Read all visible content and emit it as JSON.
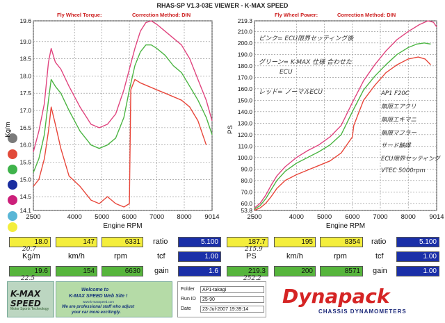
{
  "page": {
    "title": "RHAS-SP V1.3-03E VIEWER - K-MAX SPEED"
  },
  "left_panel": {
    "header_left": "Fly Wheel Torque:",
    "header_right": "Correction Method: DIN",
    "ylabel": "Kg/m",
    "xlabel": "Engine RPM",
    "dot_colors": [
      "#7a7a7a",
      "#e24a3a",
      "#3fb34b",
      "#1a2da0",
      "#cc1f7a",
      "#59b6d6",
      "#f3ee3c"
    ]
  },
  "right_panel": {
    "header_left": "Fly Wheel Power:",
    "header_right": "Correction Method: DIN",
    "ylabel": "PS",
    "xlabel": "Engine RPM",
    "notes": [
      "ピンク= ECU限界セッティング後",
      "グリーン= K-MAX 仕様 合わせた",
      "ECU",
      "レッド= ノーマルECU",
      "AP1 F20C",
      "無限エアクリ",
      "無限エキマニ",
      "無限マフラー",
      "サード触媒",
      "ECU限界セッティング",
      "VTEC 5000rpm"
    ]
  },
  "chart_data": [
    {
      "type": "line",
      "title": "Fly Wheel Torque:",
      "xlabel": "Engine RPM",
      "ylabel": "Kg/m",
      "xlim": [
        2500,
        9014
      ],
      "ylim": [
        14.1,
        19.6
      ],
      "xticks": [
        "2500",
        "4000",
        "5000",
        "6000",
        "7000",
        "8000",
        "9014"
      ],
      "xtick_values": [
        2500,
        4000,
        5000,
        6000,
        7000,
        8000,
        9014
      ],
      "yticks": [
        "19.6",
        "19.0",
        "18.5",
        "18.0",
        "17.5",
        "17.0",
        "16.5",
        "16.0",
        "15.5",
        "15.0",
        "14.5",
        "14.1"
      ],
      "ytick_values": [
        19.6,
        19.0,
        18.5,
        18.0,
        17.5,
        17.0,
        16.5,
        16.0,
        15.5,
        15.0,
        14.5,
        14.1
      ],
      "series": [
        {
          "color": "#e0447e",
          "x": [
            2500,
            2700,
            2900,
            3050,
            3150,
            3300,
            3500,
            3800,
            4200,
            4600,
            4900,
            5200,
            5500,
            5800,
            6000,
            6200,
            6400,
            6600,
            6800,
            7000,
            7300,
            7600,
            7900,
            8200,
            8500,
            8800,
            9014
          ],
          "y": [
            15.8,
            16.4,
            17.2,
            18.4,
            18.8,
            18.4,
            18.2,
            17.7,
            17.1,
            16.6,
            16.5,
            16.6,
            16.9,
            17.6,
            18.2,
            18.8,
            19.3,
            19.55,
            19.6,
            19.5,
            19.3,
            19.1,
            18.9,
            18.5,
            17.9,
            17.3,
            16.7
          ]
        },
        {
          "color": "#4cb543",
          "x": [
            2500,
            2700,
            2900,
            3050,
            3150,
            3300,
            3500,
            3800,
            4200,
            4600,
            4900,
            5200,
            5500,
            5800,
            6000,
            6200,
            6400,
            6600,
            6800,
            7000,
            7300,
            7600,
            7900,
            8200,
            8500,
            8800,
            9014
          ],
          "y": [
            15.2,
            15.6,
            16.3,
            17.3,
            17.9,
            17.7,
            17.5,
            17.0,
            16.4,
            16.0,
            15.9,
            16.0,
            16.2,
            16.8,
            17.6,
            18.3,
            18.7,
            18.9,
            18.9,
            18.8,
            18.6,
            18.3,
            18.1,
            17.7,
            17.3,
            16.8,
            16.3
          ]
        },
        {
          "color": "#e8473b",
          "x": [
            2500,
            2700,
            2900,
            3050,
            3150,
            3300,
            3500,
            3800,
            4200,
            4600,
            4900,
            5200,
            5500,
            5800,
            6000,
            6050,
            6200,
            6400,
            6700,
            7000,
            7300,
            7600,
            7900,
            8200,
            8500,
            8800
          ],
          "y": [
            14.8,
            15.0,
            15.6,
            16.4,
            17.1,
            16.6,
            15.9,
            15.1,
            14.8,
            14.4,
            14.3,
            14.5,
            14.3,
            14.2,
            14.3,
            17.6,
            17.9,
            17.8,
            17.7,
            17.6,
            17.5,
            17.4,
            17.3,
            17.1,
            16.7,
            16.0
          ]
        }
      ]
    },
    {
      "type": "line",
      "title": "Fly Wheel Power:",
      "xlabel": "Engine RPM",
      "ylabel": "PS",
      "xlim": [
        2500,
        9014
      ],
      "ylim": [
        53.8,
        219.3
      ],
      "xticks": [
        "2500",
        "4000",
        "5000",
        "6000",
        "7000",
        "8000",
        "9014"
      ],
      "xtick_values": [
        2500,
        4000,
        5000,
        6000,
        7000,
        8000,
        9014
      ],
      "yticks": [
        "219.3",
        "210.0",
        "200.0",
        "190.0",
        "180.0",
        "170.0",
        "160.0",
        "150.0",
        "140.0",
        "130.0",
        "120.0",
        "110.0",
        "100.0",
        "90.0",
        "80.0",
        "70.0",
        "60.0",
        "53.8"
      ],
      "ytick_values": [
        219.3,
        210,
        200,
        190,
        180,
        170,
        160,
        150,
        140,
        130,
        120,
        110,
        100,
        90,
        80,
        70,
        60,
        53.8
      ],
      "series": [
        {
          "color": "#e0447e",
          "x": [
            2500,
            2700,
            2900,
            3100,
            3300,
            3600,
            4000,
            4400,
            4800,
            5200,
            5600,
            6000,
            6400,
            6800,
            7200,
            7600,
            8000,
            8400,
            8700,
            8900,
            9014
          ],
          "y": [
            56,
            60,
            67,
            76,
            84,
            92,
            100,
            106,
            111,
            118,
            128,
            148,
            167,
            181,
            193,
            203,
            210,
            216,
            219.3,
            218,
            214
          ]
        },
        {
          "color": "#4cb543",
          "x": [
            2500,
            2700,
            2900,
            3100,
            3300,
            3600,
            4000,
            4400,
            4800,
            5200,
            5600,
            6000,
            6400,
            6800,
            7200,
            7600,
            8000,
            8300,
            8571,
            8800
          ],
          "y": [
            55,
            58,
            64,
            72,
            80,
            88,
            95,
            100,
            105,
            111,
            120,
            140,
            159,
            171,
            181,
            190,
            196,
            199,
            200,
            199
          ]
        },
        {
          "color": "#e8473b",
          "x": [
            2500,
            2700,
            2900,
            3100,
            3300,
            3600,
            4000,
            4400,
            4800,
            5200,
            5600,
            6000,
            6050,
            6400,
            6800,
            7200,
            7600,
            8000,
            8354,
            8600,
            8800
          ],
          "y": [
            54,
            56,
            60,
            66,
            73,
            80,
            85,
            89,
            93,
            97,
            104,
            118,
            128,
            150,
            163,
            174,
            181,
            186,
            187.7,
            186,
            181
          ]
        }
      ]
    }
  ],
  "data_rows": [
    {
      "left": {
        "v1": "18.0",
        "v2": "147",
        "v3": "6331",
        "ratio_label": "ratio",
        "ratio": "5.100"
      },
      "right": {
        "v1": "187.7",
        "v2": "195",
        "v3": "8354",
        "ratio_label": "ratio",
        "ratio": "5.100"
      }
    },
    {
      "left": {
        "u1": "Kg/m",
        "u2": "km/h",
        "u3": "rpm",
        "tcf_label": "tcf",
        "tcf": "1.00"
      },
      "right": {
        "u1": "PS",
        "u2": "km/h",
        "u3": "rpm",
        "tcf_label": "tcf",
        "tcf": "1.00"
      }
    },
    {
      "left": {
        "v1": "19.6",
        "v2": "154",
        "v3": "6630",
        "gain_label": "gain",
        "gain": "1.6"
      },
      "right": {
        "v1": "219.3",
        "v2": "200",
        "v3": "8571",
        "gain_label": "gain",
        "gain": "1.00"
      }
    }
  ],
  "handwriting": {
    "left_top": "20.7",
    "left_bottom": "22.5",
    "right_top": "215.9",
    "right_bottom": "252.2"
  },
  "footer": {
    "kmax_logo": "K-MAX SPEED",
    "kmax_tagline": "Motor Sports Technology",
    "welcome_line1": "Welcome to",
    "welcome_line2": "K-MAX SPEED Web Site !",
    "welcome_url": "www.k-maxspeed.com",
    "welcome_line3": "We are professional staff who adjust",
    "welcome_line4": "your car more excitingly.",
    "folder_label": "Folder",
    "folder_value": "AP1-takagi",
    "run_label": "Run ID",
    "run_value": "25-90",
    "date_label": "Date",
    "date_value": "23-Jul-2007   19:39:14",
    "dynapack_logo": "Dynapack",
    "dynapack_sub": "CHASSIS DYNAMOMETERS"
  }
}
